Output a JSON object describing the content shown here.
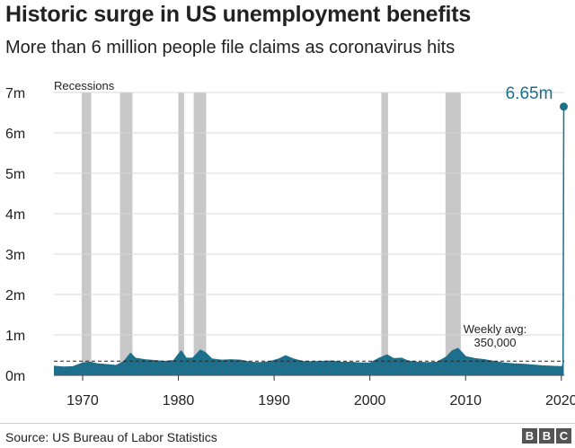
{
  "header": {
    "title": "Historic surge in US unemployment benefits",
    "subtitle": "More than 6 million people file claims as coronavirus hits"
  },
  "footer": {
    "source": "Source: US Bureau of Labor Statistics",
    "logo_letters": [
      "B",
      "B",
      "C"
    ]
  },
  "colors": {
    "area": "#1d6f8c",
    "peak_label": "#1d6f8c",
    "recession": "#c8c8c8",
    "axis_text": "#222222",
    "grid": "#d9d9d9"
  },
  "chart_data": {
    "type": "area",
    "title": "Historic surge in US unemployment benefits",
    "subtitle": "More than 6 million people file claims as coronavirus hits",
    "x_domain": [
      1967,
      2020.3
    ],
    "ylim": [
      0,
      7000000
    ],
    "y_ticks": [
      {
        "value": 0,
        "label": "0m"
      },
      {
        "value": 1000000,
        "label": "1m"
      },
      {
        "value": 2000000,
        "label": "2m"
      },
      {
        "value": 3000000,
        "label": "3m"
      },
      {
        "value": 4000000,
        "label": "4m"
      },
      {
        "value": 5000000,
        "label": "5m"
      },
      {
        "value": 6000000,
        "label": "6m"
      },
      {
        "value": 7000000,
        "label": "7m"
      }
    ],
    "x_ticks": [
      {
        "value": 1970,
        "label": "1970"
      },
      {
        "value": 1980,
        "label": "1980"
      },
      {
        "value": 1990,
        "label": "1990"
      },
      {
        "value": 2000,
        "label": "2000"
      },
      {
        "value": 2010,
        "label": "2010"
      },
      {
        "value": 2020,
        "label": "2020"
      }
    ],
    "grid": true,
    "recessions_label": "Recessions",
    "recessions": [
      {
        "start": 1969.9,
        "end": 1970.9
      },
      {
        "start": 1973.9,
        "end": 1975.2
      },
      {
        "start": 1980.0,
        "end": 1980.6
      },
      {
        "start": 1981.6,
        "end": 1982.9
      },
      {
        "start": 2001.2,
        "end": 2001.9
      },
      {
        "start": 2007.9,
        "end": 2009.5
      }
    ],
    "average": {
      "value": 350000,
      "label_line1": "Weekly avg:",
      "label_line2": "350,000"
    },
    "peak_label": "6.65m",
    "x": [
      1967,
      1968,
      1969,
      1970,
      1970.8,
      1971.5,
      1972.5,
      1973.5,
      1974.3,
      1975.0,
      1975.5,
      1976.5,
      1977.5,
      1978.5,
      1979.5,
      1980.3,
      1980.8,
      1981.5,
      1982.3,
      1982.8,
      1983.5,
      1984.5,
      1985.5,
      1986.5,
      1987.5,
      1988.5,
      1989.5,
      1990.5,
      1991.2,
      1992,
      1993,
      1994,
      1995,
      1996,
      1997,
      1998,
      1999,
      2000,
      2001,
      2001.8,
      2002.5,
      2003.3,
      2004,
      2005,
      2006,
      2007,
      2008,
      2008.6,
      2009.2,
      2010,
      2011,
      2012,
      2013,
      2014,
      2015,
      2016,
      2017,
      2018,
      2019,
      2020.1,
      2020.18,
      2020.22,
      2020.25
    ],
    "values": [
      220000,
      200000,
      210000,
      300000,
      320000,
      280000,
      260000,
      240000,
      330000,
      540000,
      420000,
      380000,
      360000,
      340000,
      360000,
      600000,
      420000,
      420000,
      620000,
      560000,
      400000,
      370000,
      380000,
      370000,
      320000,
      310000,
      330000,
      400000,
      480000,
      400000,
      340000,
      330000,
      340000,
      350000,
      320000,
      320000,
      300000,
      300000,
      420000,
      500000,
      410000,
      420000,
      350000,
      320000,
      310000,
      320000,
      450000,
      600000,
      660000,
      460000,
      410000,
      380000,
      340000,
      300000,
      280000,
      270000,
      250000,
      230000,
      220000,
      210000,
      280000,
      3300000,
      6650000
    ]
  }
}
